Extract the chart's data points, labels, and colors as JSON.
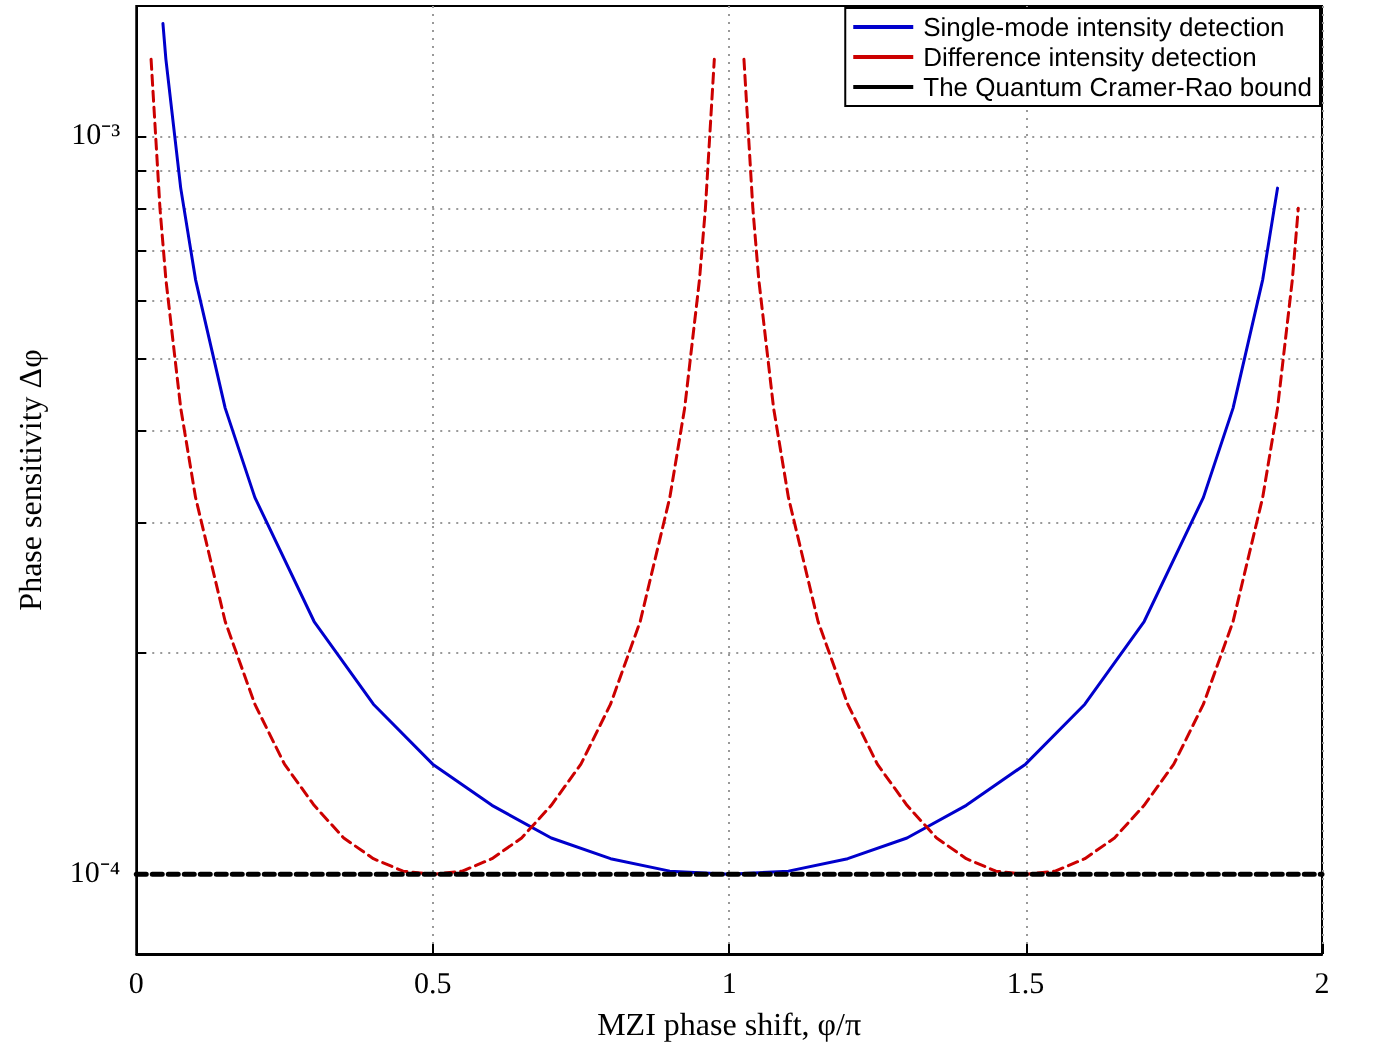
{
  "chart_data": {
    "type": "line",
    "xlabel": "MZI phase shift, φ/π",
    "ylabel": "Phase sensitivity Δφ",
    "xlim": [
      0,
      2
    ],
    "xticks": [
      0,
      0.5,
      1,
      1.5,
      2
    ],
    "ylim": [
      7.8e-05,
      0.0015
    ],
    "log": "y",
    "yticks": [
      {
        "value": 0.0001,
        "label": "10⁻⁴"
      },
      {
        "value": 0.0002,
        "label": null
      },
      {
        "value": 0.0003,
        "label": null
      },
      {
        "value": 0.0004,
        "label": null
      },
      {
        "value": 0.0005,
        "label": null
      },
      {
        "value": 0.0006,
        "label": null
      },
      {
        "value": 0.0007,
        "label": null
      },
      {
        "value": 0.0008,
        "label": null
      },
      {
        "value": 0.0009,
        "label": null
      },
      {
        "value": 0.001,
        "label": "10⁻³"
      }
    ],
    "grid": true,
    "legend": "top right",
    "marker": "none",
    "series": [
      {
        "name": "Single-mode intensity detection",
        "color": "#0000cc",
        "line_style": "solid",
        "x": [
          0.045,
          0.05,
          0.075,
          0.1,
          0.15,
          0.2,
          0.3,
          0.4,
          0.5,
          0.6,
          0.7,
          0.8,
          0.9,
          1.0,
          1.1,
          1.2,
          1.3,
          1.4,
          1.5,
          1.6,
          1.7,
          1.8,
          1.85,
          1.9,
          1.925
        ],
        "values": [
          0.00142,
          0.00127,
          0.00085,
          0.000639,
          0.000428,
          0.000324,
          0.00022,
          0.00017,
          0.000141,
          0.000124,
          0.000112,
          0.000105,
          0.000101,
          0.0001,
          0.000101,
          0.000105,
          0.000112,
          0.000124,
          0.000141,
          0.00017,
          0.00022,
          0.000324,
          0.000428,
          0.000639,
          0.00085
        ]
      },
      {
        "name": "Difference intensity detection",
        "color": "#cc0000",
        "line_style": "dashed",
        "x": [
          0.025,
          0.04,
          0.05,
          0.075,
          0.1,
          0.15,
          0.2,
          0.25,
          0.3,
          0.35,
          0.4,
          0.45,
          0.5,
          0.55,
          0.6,
          0.65,
          0.7,
          0.75,
          0.8,
          0.85,
          0.9,
          0.925,
          0.95,
          0.96,
          0.975,
          1.0,
          1.025,
          1.04,
          1.05,
          1.075,
          1.1,
          1.15,
          1.2,
          1.25,
          1.3,
          1.35,
          1.4,
          1.45,
          1.5,
          1.55,
          1.6,
          1.65,
          1.7,
          1.75,
          1.8,
          1.85,
          1.9,
          1.925,
          1.95,
          1.96
        ],
        "values": [
          0.00127,
          0.000798,
          0.000639,
          0.000428,
          0.000324,
          0.00022,
          0.00017,
          0.000141,
          0.000124,
          0.000112,
          0.000105,
          0.000101,
          0.0001,
          0.000101,
          0.000105,
          0.000112,
          0.000124,
          0.000141,
          0.00017,
          0.00022,
          0.000324,
          0.000428,
          0.000639,
          0.000798,
          0.00127,
          null,
          0.00127,
          0.000798,
          0.000639,
          0.000428,
          0.000324,
          0.00022,
          0.00017,
          0.000141,
          0.000124,
          0.000112,
          0.000105,
          0.000101,
          0.0001,
          0.000101,
          0.000105,
          0.000112,
          0.000124,
          0.000141,
          0.00017,
          0.00022,
          0.000324,
          0.000428,
          0.000639,
          0.000798
        ]
      },
      {
        "name": "The Quantum Cramer-Rao bound",
        "color": "#000000",
        "line_style": "dashed",
        "x": [
          0,
          2
        ],
        "values": [
          0.0001,
          0.0001
        ]
      }
    ]
  }
}
